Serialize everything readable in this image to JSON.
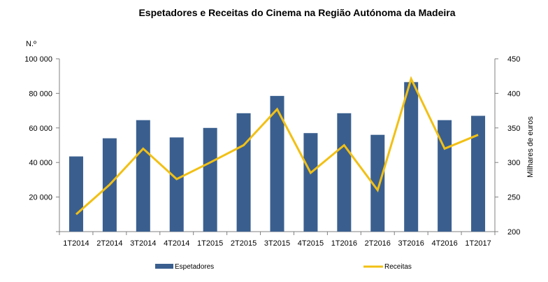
{
  "chart_data": {
    "type": "bar+line",
    "title": "Espetadores e Receitas do Cinema na Região Autónoma da Madeira",
    "categories": [
      "1T2014",
      "2T2014",
      "3T2014",
      "4T2014",
      "1T2015",
      "2T2015",
      "3T2015",
      "4T2015",
      "1T2016",
      "2T2016",
      "3T2016",
      "4T2016",
      "1T2017"
    ],
    "series": [
      {
        "name": "Espetadores",
        "type": "bar",
        "axis": "left",
        "color": "#3a5f8f",
        "values": [
          43500,
          54000,
          64500,
          54500,
          60000,
          68500,
          78500,
          57000,
          68500,
          56000,
          86500,
          64500,
          67000
        ]
      },
      {
        "name": "Receitas",
        "type": "line",
        "axis": "right",
        "color": "#f2c014",
        "values": [
          225,
          268,
          320,
          276,
          300,
          325,
          377,
          285,
          325,
          260,
          421,
          320,
          340
        ]
      }
    ],
    "y_left": {
      "label": "N.º",
      "min": 0,
      "max": 100000,
      "ticks": [
        20000,
        40000,
        60000,
        80000,
        100000
      ],
      "tick_labels": [
        "20 000",
        "40 000",
        "60 000",
        "80 000",
        "100 000"
      ]
    },
    "y_right": {
      "label": "Milhares de euros",
      "min": 200,
      "max": 450,
      "ticks": [
        200,
        250,
        300,
        350,
        400,
        450
      ],
      "tick_labels": [
        "200",
        "250",
        "300",
        "350",
        "400",
        "450"
      ]
    },
    "grid": false,
    "legend": "bottom"
  }
}
